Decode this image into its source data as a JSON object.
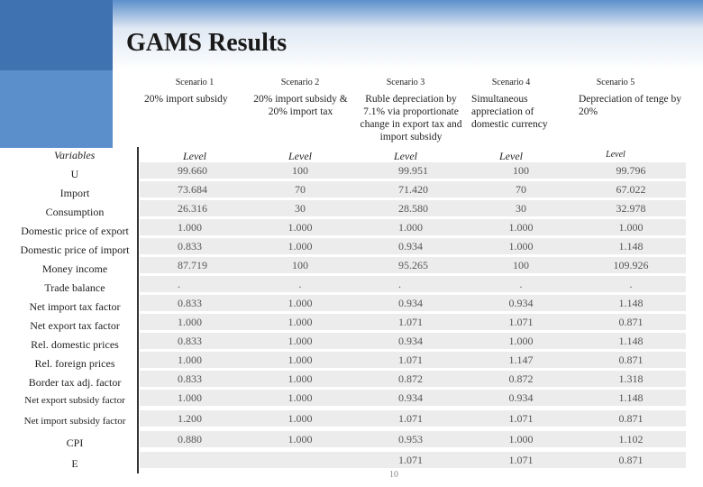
{
  "header": {
    "title": "GAMS Results"
  },
  "table": {
    "columns": [
      "Scenario 1",
      "Scenario 2",
      "Scenario 3",
      "Scenario 4",
      "Scenario 5"
    ],
    "descriptions": [
      "20%  import subsidy",
      "20% import subsidy & 20%  import tax",
      "Ruble depreciation by 7.1% via proportionate change in export tax and import subsidy",
      "Simultaneous appreciation of domestic currency",
      "Depreciation of tenge by 20%"
    ],
    "variables_header": "Variables",
    "level_labels": [
      "Level",
      "Level",
      "Level",
      "Level",
      "Level"
    ],
    "rows": [
      {
        "label": "U",
        "values": [
          "99.660",
          "100",
          "99.951",
          "100",
          "99.796"
        ]
      },
      {
        "label": "Import",
        "values": [
          "73.684",
          "70",
          "71.420",
          "70",
          "67.022"
        ]
      },
      {
        "label": "Consumption",
        "values": [
          "26.316",
          "30",
          "28.580",
          "30",
          "32.978"
        ]
      },
      {
        "label": "Domestic price of export",
        "values": [
          "1.000",
          "1.000",
          "1.000",
          "1.000",
          "1.000"
        ]
      },
      {
        "label": "Domestic price of import",
        "values": [
          "0.833",
          "1.000",
          "0.934",
          "1.000",
          "1.148"
        ]
      },
      {
        "label": "Money income",
        "values": [
          "87.719",
          "100",
          "95.265",
          "100",
          "109.926"
        ]
      },
      {
        "label": "Trade balance",
        "values": [
          ".",
          ".",
          ".",
          ".",
          "."
        ]
      },
      {
        "label": "Net import tax factor",
        "values": [
          "0.833",
          "1.000",
          "0.934",
          "0.934",
          "1.148"
        ]
      },
      {
        "label": "Net export tax factor",
        "values": [
          "1.000",
          "1.000",
          "1.071",
          "1.071",
          "0.871"
        ]
      },
      {
        "label": "Rel. domestic prices",
        "values": [
          "0.833",
          "1.000",
          "0.934",
          "1.000",
          "1.148"
        ]
      },
      {
        "label": "Rel. foreign prices",
        "values": [
          "1.000",
          "1.000",
          "1.071",
          "1.147",
          "0.871"
        ]
      },
      {
        "label": "Border tax adj. factor",
        "values": [
          "0.833",
          "1.000",
          "0.872",
          "0.872",
          "1.318"
        ]
      },
      {
        "label": "Net export subsidy factor",
        "values": [
          "1.000",
          "1.000",
          "0.934",
          "0.934",
          "1.148"
        ]
      },
      {
        "label": "Net import subsidy factor",
        "values": [
          "1.200",
          "1.000",
          "1.071",
          "1.071",
          "0.871"
        ]
      },
      {
        "label": "CPI",
        "values": [
          "0.880",
          "1.000",
          "0.953",
          "1.000",
          "1.102"
        ]
      },
      {
        "label": "E",
        "values": [
          null,
          null,
          "1.071",
          "1.071",
          "0.871"
        ]
      }
    ]
  },
  "footer": {
    "page_number": "10"
  }
}
